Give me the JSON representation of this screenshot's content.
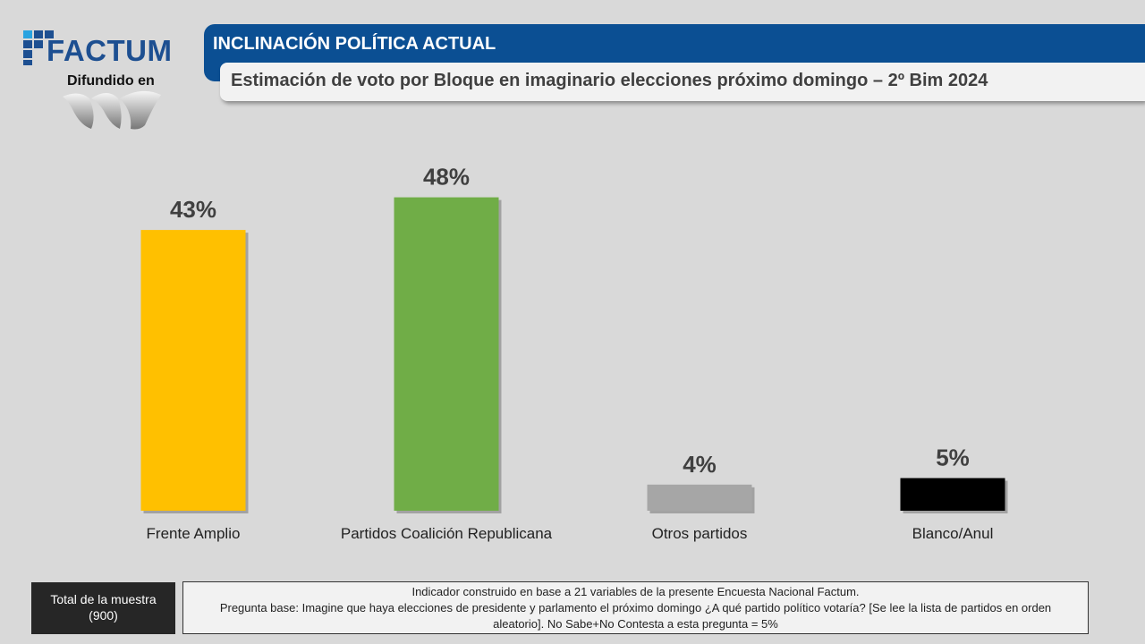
{
  "logo": {
    "brand": "FACTUM",
    "disseminated_label": "Difundido en",
    "media_logo": "W"
  },
  "header": {
    "title": "INCLINACIÓN POLÍTICA ACTUAL",
    "subtitle": "Estimación de voto por Bloque en imaginario elecciones próximo domingo – 2º Bim 2024"
  },
  "chart_data": {
    "type": "bar",
    "title": "Estimación de voto por Bloque en imaginario elecciones próximo domingo – 2º Bim 2024",
    "categories": [
      "Frente Amplio",
      "Partidos Coalición Republicana",
      "Otros partidos",
      "Blanco/Anul"
    ],
    "values": [
      43,
      48,
      4,
      5
    ],
    "labels": [
      "43%",
      "48%",
      "4%",
      "5%"
    ],
    "colors": [
      "#ffc000",
      "#70ad47",
      "#a6a6a6",
      "#000000"
    ],
    "unit": "%",
    "ylim": [
      0,
      50
    ],
    "grid": false,
    "xlabel": "",
    "ylabel": ""
  },
  "footer": {
    "sample_label": "Total de la muestra",
    "sample_value": "(900)",
    "note_line1": "Indicador construido en base a 21 variables de la presente Encuesta Nacional Factum.",
    "note_line2": "Pregunta base: Imagine que haya elecciones de presidente y parlamento el próximo domingo ¿A qué partido político votaría? [Se lee la lista de partidos en orden aleatorio]. No Sabe+No Contesta a esta pregunta = 5%"
  }
}
